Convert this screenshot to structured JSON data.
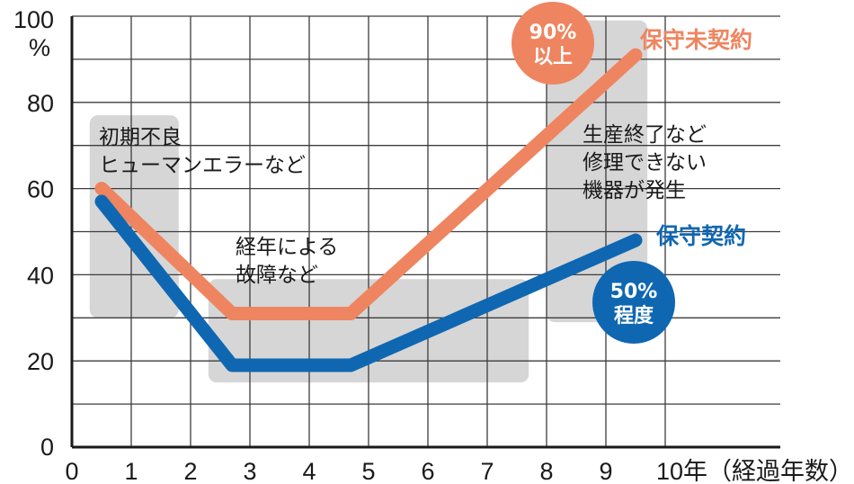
{
  "chart_data": {
    "type": "line",
    "x": [
      0.5,
      2.7,
      4.7,
      9.5
    ],
    "xlim": [
      0,
      10
    ],
    "ylim": [
      0,
      100
    ],
    "x_ticks": [
      "0",
      "1",
      "2",
      "3",
      "4",
      "5",
      "6",
      "7",
      "8",
      "9"
    ],
    "x_axis_label": "10年（経過年数）",
    "y_ticks": [
      "0",
      "20",
      "40",
      "60",
      "80",
      "100"
    ],
    "y_unit": "%",
    "grid": true,
    "series": [
      {
        "name": "保守未契約",
        "color": "#ee8560",
        "values": [
          60,
          31,
          31,
          91
        ]
      },
      {
        "name": "保守契約",
        "color": "#0f67b2",
        "values": [
          57,
          19,
          19,
          48
        ]
      }
    ],
    "phases": [
      {
        "lines": [
          "初期不良",
          "ヒューマンエラーなど"
        ],
        "x_range": [
          0.3,
          1.8
        ],
        "y_range": [
          30,
          77
        ]
      },
      {
        "lines": [
          "経年による",
          "故障など"
        ],
        "x_range": [
          2.3,
          7.7
        ],
        "y_range": [
          15,
          39
        ]
      },
      {
        "lines": [
          "生産終了など",
          "修理できない",
          "機器が発生"
        ],
        "x_range": [
          8.0,
          9.7
        ],
        "y_range": [
          29,
          99
        ]
      }
    ],
    "badges": [
      {
        "lines": [
          "90%",
          "以上"
        ],
        "series": "保守未契約",
        "color": "#ee8560"
      },
      {
        "lines": [
          "50%",
          "程度"
        ],
        "series": "保守契約",
        "color": "#0f67b2"
      }
    ]
  }
}
